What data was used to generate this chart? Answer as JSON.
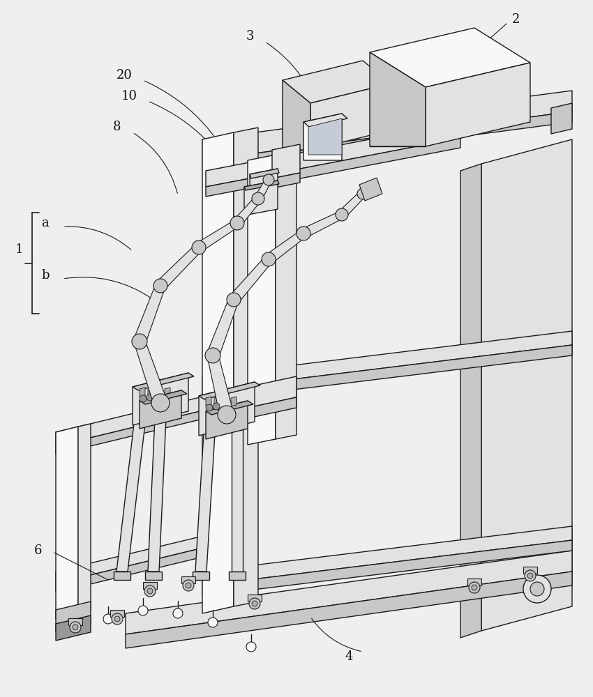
{
  "bg_color": "#efefef",
  "line_color": "#1a1a1a",
  "lw": 1.0,
  "figsize": [
    8.5,
    10.0
  ],
  "dpi": 100,
  "fill_white": "#f8f8f8",
  "fill_light": "#e2e2e2",
  "fill_mid": "#c8c8c8",
  "fill_dark": "#b0b0b0",
  "fill_darker": "#989898"
}
